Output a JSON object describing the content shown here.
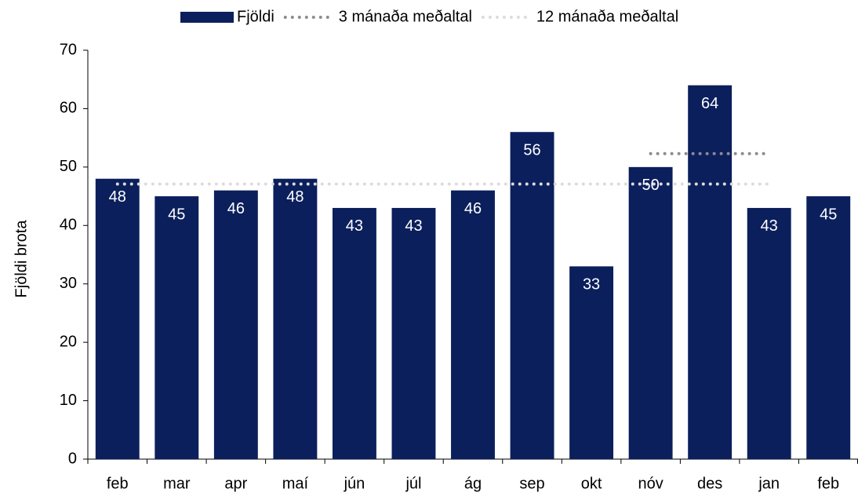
{
  "chart_data": {
    "type": "bar",
    "y_label": "Fjöldi brota",
    "categories": [
      "feb",
      "mar",
      "apr",
      "maí",
      "jún",
      "júl",
      "ág",
      "sep",
      "okt",
      "nóv",
      "des",
      "jan",
      "feb"
    ],
    "series": [
      {
        "name": "Fjöldi",
        "type": "bar",
        "color": "#0b1f5c",
        "values": [
          48,
          45,
          46,
          48,
          43,
          43,
          46,
          56,
          33,
          50,
          64,
          43,
          45
        ]
      },
      {
        "name": "3 mánaða meðaltal",
        "type": "line",
        "color": "#8c8c8c",
        "values": [
          null,
          null,
          null,
          null,
          null,
          null,
          null,
          null,
          null,
          52.3,
          52.3,
          52.3,
          null
        ]
      },
      {
        "name": "12 mánaða meðaltal",
        "type": "line",
        "color": "#dcdcdc",
        "values": [
          47.1,
          47.1,
          47.1,
          47.1,
          47.1,
          47.1,
          47.1,
          47.1,
          47.1,
          47.1,
          47.1,
          47.1,
          null
        ]
      }
    ],
    "ylim": [
      0,
      70
    ],
    "yticks": [
      0,
      10,
      20,
      30,
      40,
      50,
      60,
      70
    ],
    "data_labels": true,
    "legend": "top"
  }
}
